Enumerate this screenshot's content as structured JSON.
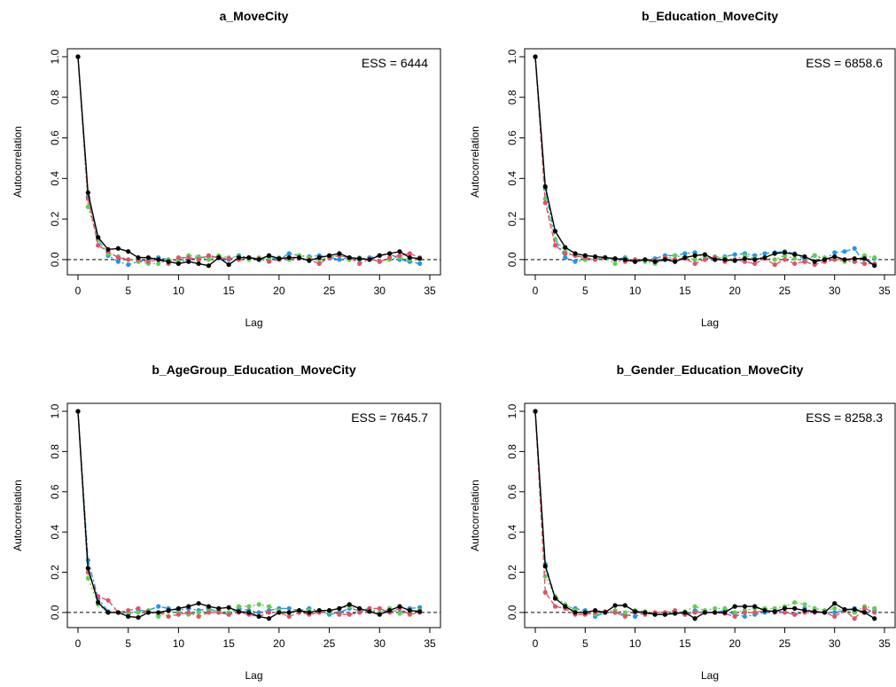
{
  "chart_data": [
    {
      "type": "line",
      "title": "a_MoveCity",
      "xlabel": "Lag",
      "ylabel": "Autocorrelation",
      "annotation": "ESS = 6444",
      "xlim": [
        0,
        35
      ],
      "ylim": [
        -0.04,
        1.0
      ],
      "xticks": [
        0,
        5,
        10,
        15,
        20,
        25,
        30,
        35
      ],
      "yticks": [
        0.0,
        0.2,
        0.4,
        0.6,
        0.8,
        1.0
      ],
      "x": [
        0,
        1,
        2,
        3,
        4,
        5,
        6,
        7,
        8,
        9,
        10,
        11,
        12,
        13,
        14,
        15,
        16,
        17,
        18,
        19,
        20,
        21,
        22,
        23,
        24,
        25,
        26,
        27,
        28,
        29,
        30,
        31,
        32,
        33,
        34
      ],
      "series": [
        {
          "color": "#000000",
          "values": [
            1.0,
            0.33,
            0.11,
            0.05,
            0.055,
            0.04,
            0.01,
            0.01,
            0.0,
            -0.01,
            -0.02,
            -0.01,
            -0.02,
            -0.03,
            0.01,
            -0.025,
            0.01,
            0.01,
            0.0,
            0.02,
            0.005,
            0.01,
            0.01,
            -0.005,
            0.01,
            0.02,
            0.03,
            0.01,
            0.005,
            0.0,
            0.02,
            0.03,
            0.04,
            0.01,
            0.005
          ]
        },
        {
          "color": "#DF536B",
          "values": [
            1.0,
            0.3,
            0.07,
            0.04,
            0.01,
            0.0,
            0.0,
            -0.01,
            0.0,
            -0.02,
            0.01,
            0.01,
            0.0,
            0.02,
            0.01,
            0.005,
            0.0,
            0.01,
            0.005,
            -0.01,
            0.0,
            0.01,
            0.005,
            0.0,
            -0.02,
            0.01,
            0.02,
            0.01,
            -0.02,
            0.005,
            -0.01,
            0.01,
            0.02,
            0.03,
            0.01
          ]
        },
        {
          "color": "#61D04F",
          "values": [
            1.0,
            0.26,
            0.1,
            0.03,
            0.015,
            0.0,
            -0.01,
            -0.02,
            -0.02,
            0.0,
            -0.01,
            0.02,
            0.015,
            0.0,
            0.02,
            0.01,
            0.015,
            0.0,
            0.01,
            0.0,
            0.01,
            0.0,
            0.02,
            0.01,
            0.0,
            0.01,
            0.02,
            0.0,
            0.01,
            0.0,
            -0.01,
            0.0,
            0.01,
            0.0,
            0.005
          ]
        },
        {
          "color": "#2297E6",
          "values": [
            1.0,
            0.31,
            0.1,
            0.02,
            -0.01,
            -0.025,
            -0.01,
            0.0,
            0.01,
            0.0,
            -0.01,
            0.0,
            0.01,
            0.015,
            0.01,
            0.0,
            0.02,
            0.01,
            0.0,
            0.01,
            0.0,
            0.03,
            0.02,
            0.015,
            0.02,
            0.01,
            0.0,
            0.01,
            0.0,
            0.01,
            0.02,
            0.03,
            0.0,
            -0.01,
            -0.02
          ]
        }
      ]
    },
    {
      "type": "line",
      "title": "b_Education_MoveCity",
      "xlabel": "Lag",
      "ylabel": "Autocorrelation",
      "annotation": "ESS = 6858.6",
      "xlim": [
        0,
        35
      ],
      "ylim": [
        -0.04,
        1.0
      ],
      "xticks": [
        0,
        5,
        10,
        15,
        20,
        25,
        30,
        35
      ],
      "yticks": [
        0.0,
        0.2,
        0.4,
        0.6,
        0.8,
        1.0
      ],
      "x": [
        0,
        1,
        2,
        3,
        4,
        5,
        6,
        7,
        8,
        9,
        10,
        11,
        12,
        13,
        14,
        15,
        16,
        17,
        18,
        19,
        20,
        21,
        22,
        23,
        24,
        25,
        26,
        27,
        28,
        29,
        30,
        31,
        32,
        33,
        34
      ],
      "series": [
        {
          "color": "#000000",
          "values": [
            1.0,
            0.36,
            0.14,
            0.06,
            0.03,
            0.02,
            0.015,
            0.01,
            0.005,
            0.0,
            -0.01,
            0.0,
            -0.01,
            0.0,
            -0.01,
            0.01,
            0.02,
            0.025,
            0.0,
            0.0,
            -0.005,
            0.005,
            0.0,
            0.01,
            0.03,
            0.035,
            0.025,
            0.015,
            -0.01,
            0.0,
            0.015,
            0.0,
            0.005,
            0.005,
            -0.03
          ]
        },
        {
          "color": "#DF536B",
          "values": [
            1.0,
            0.28,
            0.07,
            0.03,
            0.02,
            0.01,
            0.0,
            0.01,
            0.005,
            -0.01,
            0.0,
            0.0,
            -0.005,
            0.01,
            0.0,
            0.005,
            -0.02,
            0.0,
            0.01,
            -0.01,
            0.0,
            -0.01,
            -0.02,
            0.005,
            -0.025,
            0.0,
            -0.02,
            -0.01,
            -0.025,
            -0.01,
            0.0,
            0.0,
            -0.01,
            -0.02,
            -0.02
          ]
        },
        {
          "color": "#61D04F",
          "values": [
            1.0,
            0.3,
            0.1,
            0.04,
            0.02,
            0.0,
            0.005,
            0.01,
            -0.02,
            0.005,
            0.0,
            -0.01,
            -0.02,
            0.0,
            0.02,
            0.01,
            0.0,
            0.01,
            0.015,
            0.01,
            0.0,
            0.02,
            0.005,
            0.01,
            0.0,
            0.02,
            0.005,
            -0.01,
            0.02,
            0.01,
            0.0,
            -0.01,
            -0.01,
            0.02,
            0.01
          ]
        },
        {
          "color": "#2297E6",
          "values": [
            1.0,
            0.35,
            0.1,
            0.01,
            -0.01,
            0.0,
            0.0,
            0.01,
            0.0,
            0.01,
            -0.01,
            0.0,
            0.005,
            0.02,
            0.02,
            0.03,
            0.035,
            0.01,
            0.0,
            0.015,
            0.025,
            0.03,
            0.02,
            0.03,
            0.035,
            0.04,
            0.03,
            0.0,
            0.02,
            0.0,
            0.035,
            0.04,
            0.055,
            -0.02,
            0.005
          ]
        }
      ]
    },
    {
      "type": "line",
      "title": "b_AgeGroup_Education_MoveCity",
      "xlabel": "Lag",
      "ylabel": "Autocorrelation",
      "annotation": "ESS = 7645.7",
      "xlim": [
        0,
        35
      ],
      "ylim": [
        -0.04,
        1.0
      ],
      "xticks": [
        0,
        5,
        10,
        15,
        20,
        25,
        30,
        35
      ],
      "yticks": [
        0.0,
        0.2,
        0.4,
        0.6,
        0.8,
        1.0
      ],
      "x": [
        0,
        1,
        2,
        3,
        4,
        5,
        6,
        7,
        8,
        9,
        10,
        11,
        12,
        13,
        14,
        15,
        16,
        17,
        18,
        19,
        20,
        21,
        22,
        23,
        24,
        25,
        26,
        27,
        28,
        29,
        30,
        31,
        32,
        33,
        34
      ],
      "series": [
        {
          "color": "#000000",
          "values": [
            1.0,
            0.22,
            0.05,
            0.0,
            0.0,
            -0.02,
            -0.025,
            0.0,
            0.0,
            0.01,
            0.02,
            0.03,
            0.045,
            0.03,
            0.02,
            0.025,
            0.005,
            0.0,
            -0.02,
            -0.03,
            0.0,
            0.0,
            0.01,
            0.0,
            0.01,
            0.01,
            0.02,
            0.04,
            0.02,
            0.005,
            -0.01,
            0.01,
            0.03,
            0.01,
            0.005
          ]
        },
        {
          "color": "#DF536B",
          "values": [
            1.0,
            0.2,
            0.08,
            0.06,
            0.0,
            0.01,
            0.02,
            0.0,
            0.0,
            -0.02,
            -0.01,
            0.0,
            -0.02,
            0.0,
            0.0,
            -0.01,
            0.0,
            -0.01,
            -0.02,
            0.0,
            0.0,
            -0.02,
            0.0,
            -0.01,
            0.0,
            0.01,
            -0.01,
            -0.01,
            0.0,
            0.02,
            0.02,
            0.0,
            0.02,
            -0.01,
            0.0
          ]
        },
        {
          "color": "#61D04F",
          "values": [
            1.0,
            0.17,
            0.04,
            0.0,
            0.0,
            0.0,
            0.0,
            0.01,
            -0.02,
            0.005,
            0.0,
            -0.01,
            0.0,
            0.01,
            0.01,
            0.0,
            0.03,
            0.03,
            0.04,
            0.03,
            0.01,
            0.0,
            0.0,
            0.01,
            0.005,
            0.0,
            0.02,
            0.03,
            0.01,
            0.02,
            0.0,
            0.02,
            -0.005,
            0.0,
            0.01
          ]
        },
        {
          "color": "#2297E6",
          "values": [
            1.0,
            0.26,
            0.07,
            0.005,
            0.0,
            -0.01,
            0.01,
            0.01,
            0.03,
            0.02,
            0.01,
            0.02,
            0.01,
            0.02,
            0.0,
            -0.01,
            0.02,
            0.01,
            0.0,
            0.01,
            0.02,
            0.02,
            0.01,
            0.02,
            0.01,
            -0.01,
            0.0,
            0.02,
            0.01,
            0.02,
            -0.01,
            0.02,
            0.0,
            0.02,
            0.025
          ]
        }
      ]
    },
    {
      "type": "line",
      "title": "b_Gender_Education_MoveCity",
      "xlabel": "Lag",
      "ylabel": "Autocorrelation",
      "annotation": "ESS = 8258.3",
      "xlim": [
        0,
        35
      ],
      "ylim": [
        -0.04,
        1.0
      ],
      "xticks": [
        0,
        5,
        10,
        15,
        20,
        25,
        30,
        35
      ],
      "yticks": [
        0.0,
        0.2,
        0.4,
        0.6,
        0.8,
        1.0
      ],
      "x": [
        0,
        1,
        2,
        3,
        4,
        5,
        6,
        7,
        8,
        9,
        10,
        11,
        12,
        13,
        14,
        15,
        16,
        17,
        18,
        19,
        20,
        21,
        22,
        23,
        24,
        25,
        26,
        27,
        28,
        29,
        30,
        31,
        32,
        33,
        34
      ],
      "series": [
        {
          "color": "#000000",
          "values": [
            1.0,
            0.23,
            0.07,
            0.03,
            0.0,
            0.0,
            0.01,
            0.0,
            0.035,
            0.035,
            0.005,
            0.0,
            -0.01,
            -0.01,
            -0.005,
            0.0,
            -0.03,
            0.0,
            0.0,
            0.0,
            0.03,
            0.03,
            0.03,
            0.01,
            0.005,
            0.02,
            0.02,
            0.01,
            0.005,
            0.0,
            0.045,
            0.015,
            0.015,
            0.0,
            -0.03
          ]
        },
        {
          "color": "#DF536B",
          "values": [
            1.0,
            0.1,
            0.03,
            0.02,
            -0.01,
            -0.01,
            0.0,
            0.005,
            0.0,
            -0.02,
            0.0,
            -0.01,
            0.0,
            0.0,
            0.01,
            -0.01,
            0.0,
            0.0,
            0.0,
            -0.005,
            -0.02,
            0.0,
            0.0,
            0.01,
            0.0,
            0.0,
            -0.01,
            0.0,
            0.0,
            0.0,
            -0.02,
            0.01,
            -0.03,
            0.02,
            0.0
          ]
        },
        {
          "color": "#61D04F",
          "values": [
            1.0,
            0.18,
            0.08,
            0.04,
            0.01,
            0.0,
            -0.01,
            0.005,
            0.01,
            0.0,
            0.01,
            0.005,
            0.0,
            0.0,
            0.0,
            0.005,
            0.03,
            0.01,
            0.02,
            0.02,
            0.0,
            0.01,
            0.02,
            0.02,
            0.02,
            0.03,
            0.05,
            0.04,
            0.02,
            0.01,
            0.02,
            0.01,
            0.0,
            0.03,
            0.02
          ]
        },
        {
          "color": "#2297E6",
          "values": [
            1.0,
            0.24,
            0.07,
            0.03,
            0.02,
            0.01,
            -0.02,
            0.0,
            0.0,
            -0.01,
            -0.02,
            0.0,
            -0.01,
            -0.01,
            0.0,
            -0.01,
            0.01,
            0.0,
            0.0,
            0.01,
            -0.01,
            -0.02,
            -0.01,
            0.0,
            0.01,
            0.0,
            -0.01,
            0.02,
            0.0,
            0.0,
            0.0,
            0.01,
            0.02,
            0.0,
            0.01
          ]
        }
      ]
    }
  ]
}
